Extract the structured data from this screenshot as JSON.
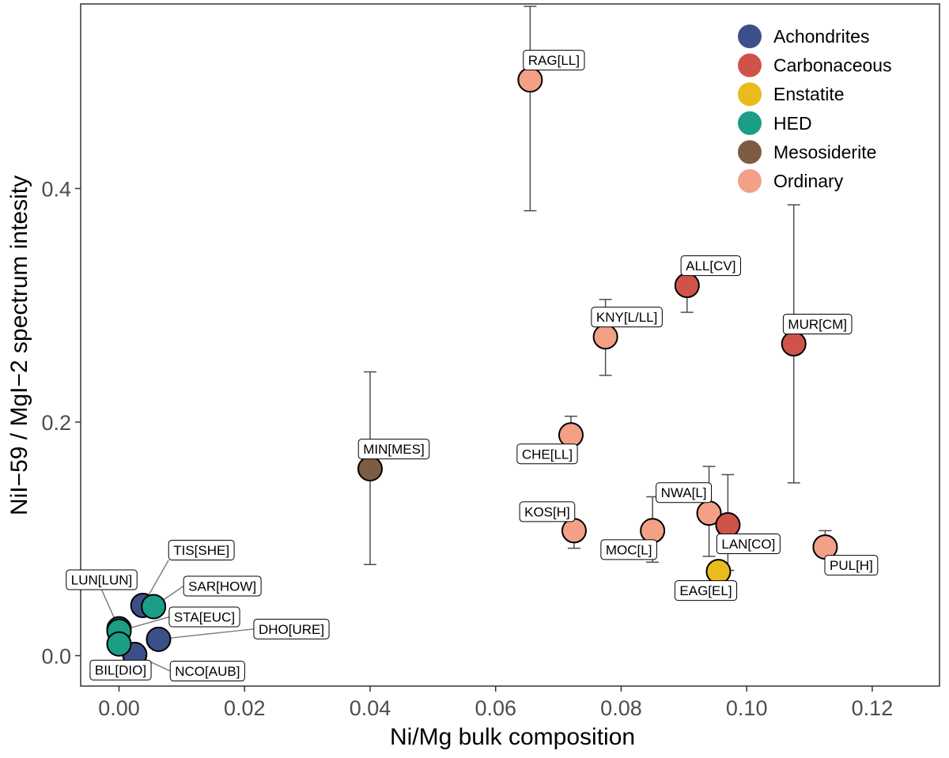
{
  "chart_data": {
    "type": "scatter",
    "title": "",
    "xlabel": "Ni/Mg bulk composition",
    "ylabel": "NiI−59 / MgI−2 spectrum intesity",
    "xlim": [
      -0.006,
      0.131
    ],
    "ylim": [
      -0.029,
      0.556
    ],
    "x_ticks": [
      0.0,
      0.02,
      0.04,
      0.06,
      0.08,
      0.1,
      0.12
    ],
    "x_tick_labels": [
      "0.00",
      "0.02",
      "0.04",
      "0.06",
      "0.08",
      "0.10",
      "0.12"
    ],
    "y_ticks": [
      0.0,
      0.2,
      0.4
    ],
    "y_tick_labels": [
      "0.0",
      "0.2",
      "0.4"
    ],
    "grid": false,
    "legend_position": "top-right",
    "groups": [
      {
        "name": "Achondrites",
        "color": "#3b5088"
      },
      {
        "name": "Carbonaceous",
        "color": "#d0534a"
      },
      {
        "name": "Enstatite",
        "color": "#eabb1a"
      },
      {
        "name": "HED",
        "color": "#1b9e85"
      },
      {
        "name": "Mesosiderite",
        "color": "#7d5c44"
      },
      {
        "name": "Ordinary",
        "color": "#f3a087"
      }
    ],
    "points": [
      {
        "label": "RAG[LL]",
        "group": "Ordinary",
        "x": 0.0655,
        "y": 0.493,
        "err_low": 0.381,
        "err_high": 0.556
      },
      {
        "label": "ALL[CV]",
        "group": "Carbonaceous",
        "x": 0.0905,
        "y": 0.317,
        "err_low": 0.294,
        "err_high": 0.317
      },
      {
        "label": "KNY[L/LL]",
        "group": "Ordinary",
        "x": 0.0775,
        "y": 0.273,
        "err_low": 0.24,
        "err_high": 0.305
      },
      {
        "label": "MUR[CM]",
        "group": "Carbonaceous",
        "x": 0.1075,
        "y": 0.267,
        "err_low": 0.148,
        "err_high": 0.386
      },
      {
        "label": "CHE[LL]",
        "group": "Ordinary",
        "x": 0.072,
        "y": 0.189,
        "err_low": 0.189,
        "err_high": 0.205
      },
      {
        "label": "MIN[MES]",
        "group": "Mesosiderite",
        "x": 0.04,
        "y": 0.16,
        "err_low": 0.078,
        "err_high": 0.243
      },
      {
        "label": "NWA[L]",
        "group": "Ordinary",
        "x": 0.094,
        "y": 0.122,
        "err_low": 0.085,
        "err_high": 0.162
      },
      {
        "label": "LAN[CO]",
        "group": "Carbonaceous",
        "x": 0.097,
        "y": 0.112,
        "err_low": 0.073,
        "err_high": 0.155
      },
      {
        "label": "KOS[H]",
        "group": "Ordinary",
        "x": 0.0725,
        "y": 0.107,
        "err_low": 0.092,
        "err_high": 0.107
      },
      {
        "label": "MOC[L]",
        "group": "Ordinary",
        "x": 0.085,
        "y": 0.107,
        "err_low": 0.08,
        "err_high": 0.136
      },
      {
        "label": "PUL[H]",
        "group": "Ordinary",
        "x": 0.1125,
        "y": 0.093,
        "err_low": 0.093,
        "err_high": 0.107
      },
      {
        "label": "EAG[EL]",
        "group": "Enstatite",
        "x": 0.0955,
        "y": 0.072,
        "err_low": 0.072,
        "err_high": 0.072
      },
      {
        "label": "TIS[SHE]",
        "group": "Achondrites",
        "x": 0.0038,
        "y": 0.043,
        "err_low": 0.043,
        "err_high": 0.043
      },
      {
        "label": "SAR[HOW]",
        "group": "HED",
        "x": 0.0055,
        "y": 0.042,
        "err_low": 0.042,
        "err_high": 0.042
      },
      {
        "label": "LUN[LUN]",
        "group": "Achondrites",
        "x": 0.0,
        "y": 0.023,
        "err_low": 0.023,
        "err_high": 0.023
      },
      {
        "label": "STA[EUC]",
        "group": "HED",
        "x": 0.0,
        "y": 0.021,
        "err_low": 0.021,
        "err_high": 0.021
      },
      {
        "label": "DHO[URE]",
        "group": "Achondrites",
        "x": 0.0063,
        "y": 0.014,
        "err_low": 0.014,
        "err_high": 0.014
      },
      {
        "label": "NCO[AUB]",
        "group": "Achondrites",
        "x": 0.0025,
        "y": 0.001,
        "err_low": 0.001,
        "err_high": 0.001
      },
      {
        "label": "BIL[DIO]",
        "group": "HED",
        "x": 0.0,
        "y": 0.01,
        "err_low": 0.01,
        "err_high": 0.01
      }
    ]
  }
}
